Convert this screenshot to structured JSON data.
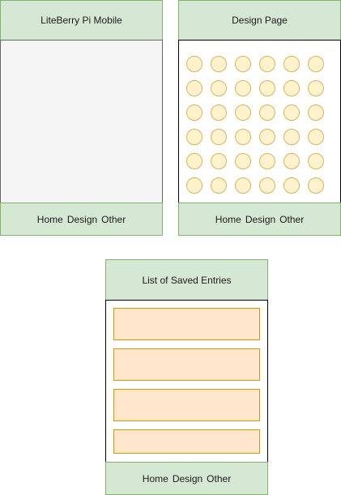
{
  "screens": [
    {
      "title": "LiteBerry Pi Mobile",
      "nav": [
        "Home",
        "Design",
        "Other"
      ]
    },
    {
      "title": "Design Page",
      "nav": [
        "Home",
        "Design",
        "Other"
      ],
      "grid": {
        "rows": 6,
        "cols": 6
      }
    },
    {
      "title": "List of Saved Entries",
      "nav": [
        "Home",
        "Design",
        "Other"
      ],
      "entries_count": 4
    }
  ],
  "colors": {
    "bar_fill": "#d5e8d4",
    "bar_stroke": "#82b366",
    "circle_fill": "#fff2cc",
    "circle_stroke": "#d6b656",
    "entry_fill": "#ffe6cc",
    "entry_stroke": "#d79b00"
  }
}
